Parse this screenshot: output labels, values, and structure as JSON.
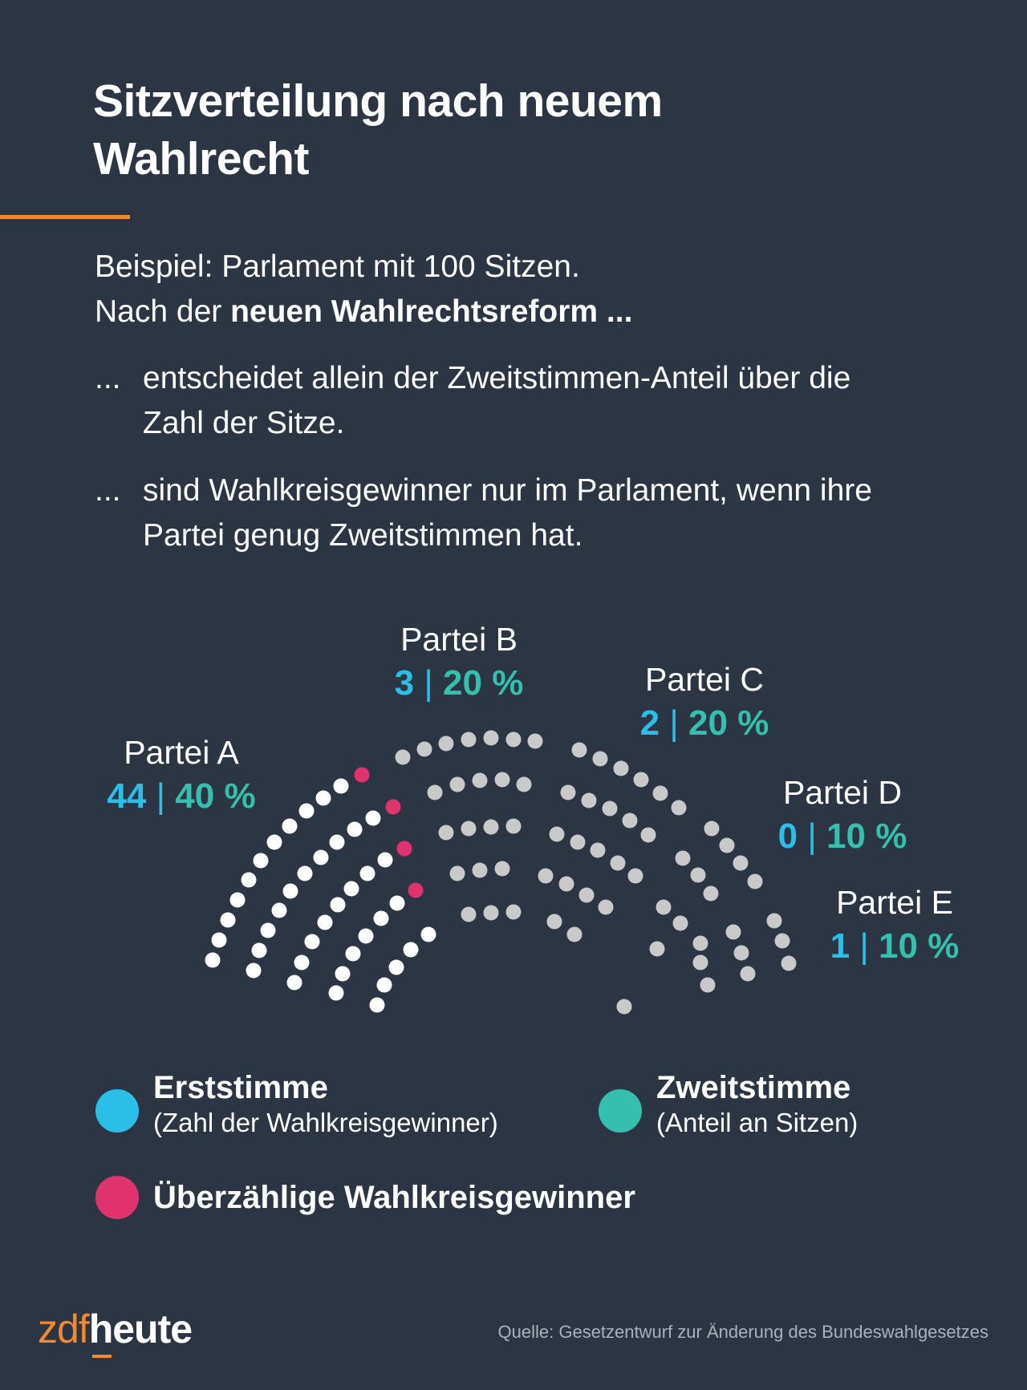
{
  "header": {
    "title_line1": "Sitzverteilung nach neuem",
    "title_line2": "Wahlrecht",
    "accent_color": "#f08a2c"
  },
  "intro": {
    "line1": "Beispiel: Parlament mit 100 Sitzen.",
    "line2_plain": "Nach der ",
    "line2_bold": "neuen Wahlrechtsreform ..."
  },
  "bullets": [
    {
      "prefix": "...",
      "text": "entscheidet allein der Zweitstimmen-Anteil über die Zahl der Sitze."
    },
    {
      "prefix": "...",
      "text": "sind Wahlkreisgewinner nur im Parlament, wenn ihre Partei genug Zweitstimmen hat."
    }
  ],
  "colors": {
    "background": "#2c3543",
    "erststimme": "#2bbfe8",
    "zweitstimme": "#35bfae",
    "ueberzaehlig": "#e0336e",
    "party_a_seat": "#ffffff",
    "other_seat": "#c9c9c9"
  },
  "chart_data": {
    "type": "parliament",
    "title": "Sitzverteilung nach neuem Wahlrecht",
    "total_seats": 100,
    "parties": [
      {
        "name": "Partei A",
        "erststimme": 44,
        "zweitstimme_pct": 40,
        "seats": 40,
        "overhang_shown": 4,
        "highlight": true
      },
      {
        "name": "Partei B",
        "erststimme": 3,
        "zweitstimme_pct": 20,
        "seats": 20
      },
      {
        "name": "Partei C",
        "erststimme": 2,
        "zweitstimme_pct": 20,
        "seats": 20
      },
      {
        "name": "Partei D",
        "erststimme": 0,
        "zweitstimme_pct": 10,
        "seats": 10
      },
      {
        "name": "Partei E",
        "erststimme": 1,
        "zweitstimme_pct": 10,
        "seats": 10
      }
    ],
    "separator": "|",
    "pct_suffix": " %"
  },
  "legend": [
    {
      "title": "Erststimme",
      "subtitle": "(Zahl der Wahlkreisgewinner)",
      "color": "#2bbfe8"
    },
    {
      "title": "Zweitstimme",
      "subtitle": "(Anteil an Sitzen)",
      "color": "#35bfae"
    },
    {
      "title": "Überzählige Wahlkreisgewinner",
      "subtitle": "",
      "color": "#e0336e"
    }
  ],
  "footer": {
    "logo_part1": "zdf",
    "logo_part2": "heute",
    "source": "Quelle: Gesetzentwurf zur Änderung des Bundeswahlgesetzes"
  }
}
